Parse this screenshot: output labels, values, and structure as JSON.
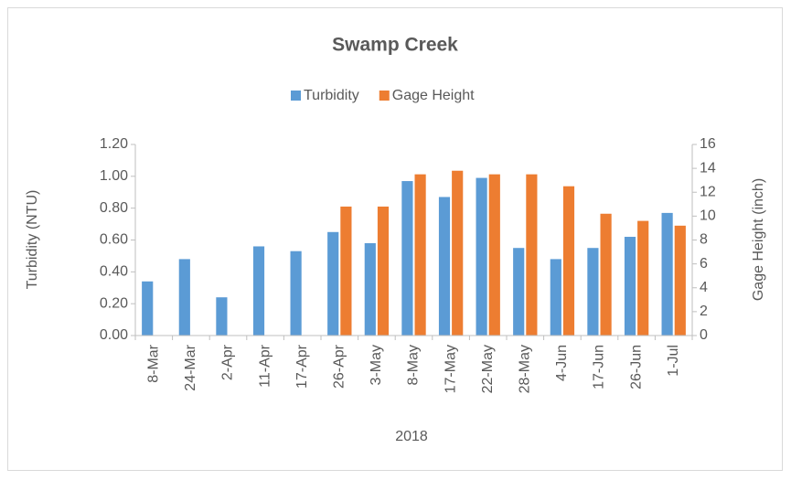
{
  "chart_data": {
    "type": "bar",
    "title": "Swamp Creek",
    "x_label": "2018",
    "y_label": "Turbidity (NTU)",
    "y2_label": "Gage Height (inch)",
    "categories": [
      "8-Mar",
      "24-Mar",
      "2-Apr",
      "11-Apr",
      "17-Apr",
      "26-Apr",
      "3-May",
      "8-May",
      "17-May",
      "22-May",
      "28-May",
      "4-Jun",
      "17-Jun",
      "26-Jun",
      "1-Jul"
    ],
    "series": [
      {
        "name": "Turbidity",
        "color": "#5b9bd5",
        "values": [
          0.34,
          0.48,
          0.24,
          0.56,
          0.53,
          0.65,
          0.58,
          0.97,
          0.87,
          0.99,
          0.55,
          0.48,
          0.55,
          0.62,
          0.77
        ]
      },
      {
        "name": "Gage Height",
        "color": "#ed7d31",
        "axis": "y2",
        "values": [
          null,
          null,
          null,
          null,
          null,
          10.8,
          10.8,
          13.5,
          13.8,
          13.5,
          13.5,
          12.5,
          10.2,
          9.6,
          9.2
        ]
      }
    ],
    "ylim": [
      0,
      1.2
    ],
    "yticks": [
      {
        "value": 0,
        "label": "0.00"
      },
      {
        "value": 0.2,
        "label": "0.20"
      },
      {
        "value": 0.4,
        "label": "0.40"
      },
      {
        "value": 0.6,
        "label": "0.60"
      },
      {
        "value": 0.8,
        "label": "0.80"
      },
      {
        "value": 1,
        "label": "1.00"
      },
      {
        "value": 1.2,
        "label": "1.20"
      }
    ],
    "y2lim": [
      0,
      16
    ],
    "y2ticks": [
      0,
      2,
      4,
      6,
      8,
      10,
      12,
      14,
      16
    ],
    "grid": false,
    "legend": "top"
  }
}
